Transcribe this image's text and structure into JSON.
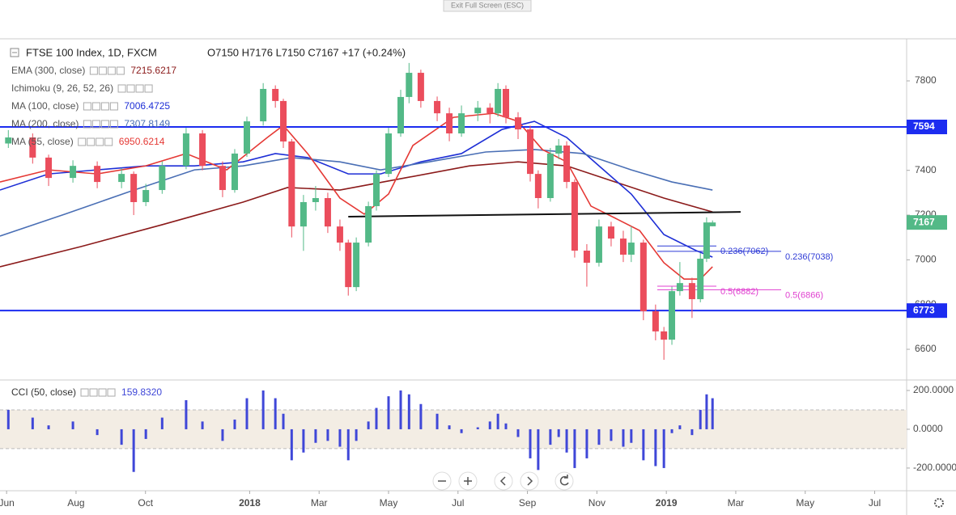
{
  "ui": {
    "exit_button": "Exit Full Screen (ESC)"
  },
  "chart_data": [
    {
      "type": "candlestick",
      "title": "FTSE 100 Index, 1D, FXCM",
      "ohlc_summary": "O7150 H7176 L7150 C7167 +17 (+0.24%)",
      "x": [
        0.05,
        0.75,
        1.21,
        1.91,
        2.61,
        3.31,
        3.66,
        4.01,
        4.48,
        5.17,
        5.64,
        6.22,
        6.57,
        6.92,
        7.39,
        7.74,
        7.97,
        8.21,
        8.55,
        8.9,
        9.25,
        9.6,
        9.84,
        10.07,
        10.42,
        10.65,
        11.0,
        11.35,
        11.59,
        11.93,
        12.4,
        12.75,
        13.1,
        13.57,
        13.92,
        14.15,
        14.38,
        14.73,
        15.08,
        15.31,
        15.66,
        15.9,
        16.13,
        16.36,
        16.71,
        17.06,
        17.41,
        17.76,
        17.99,
        18.34,
        18.69,
        18.93,
        19.16,
        19.39,
        19.74,
        19.98,
        20.16,
        20.33
      ],
      "open": [
        7520,
        7547,
        7457,
        7366,
        7420,
        7348,
        7384,
        7258,
        7312,
        7420,
        7565,
        7420,
        7312,
        7475,
        7619,
        7764,
        7710,
        7529,
        7149,
        7258,
        7276,
        7149,
        7077,
        6878,
        7077,
        7240,
        7384,
        7565,
        7728,
        7836,
        7710,
        7655,
        7565,
        7655,
        7680,
        7655,
        7764,
        7637,
        7583,
        7384,
        7276,
        7475,
        7511,
        7348,
        7041,
        6987,
        7149,
        7095,
        7023,
        7077,
        6770,
        6680,
        6643,
        6860,
        6896,
        6824,
        7005,
        7150
      ],
      "high": [
        7580,
        7565,
        7470,
        7445,
        7440,
        7410,
        7395,
        7340,
        7440,
        7590,
        7580,
        7440,
        7495,
        7640,
        7790,
        7780,
        7720,
        7540,
        7290,
        7330,
        7300,
        7180,
        7090,
        7100,
        7260,
        7400,
        7590,
        7760,
        7880,
        7850,
        7730,
        7680,
        7690,
        7710,
        7700,
        7790,
        7780,
        7660,
        7600,
        7400,
        7500,
        7540,
        7530,
        7360,
        7070,
        7180,
        7170,
        7130,
        7150,
        7090,
        6800,
        6700,
        6880,
        6990,
        6920,
        7030,
        7190,
        7176
      ],
      "low": [
        7500,
        7430,
        7330,
        7345,
        7320,
        7320,
        7200,
        7240,
        7295,
        7405,
        7400,
        7280,
        7300,
        7460,
        7600,
        7680,
        7500,
        7100,
        7040,
        7220,
        7120,
        7040,
        6840,
        6860,
        7060,
        7220,
        7370,
        7550,
        7700,
        7680,
        7620,
        7530,
        7550,
        7620,
        7610,
        7640,
        7610,
        7540,
        7350,
        7230,
        7260,
        7450,
        7320,
        7010,
        6880,
        6970,
        7060,
        6990,
        6990,
        6730,
        6640,
        6553,
        6620,
        6840,
        6740,
        6810,
        6990,
        7150
      ],
      "close": [
        7547,
        7457,
        7366,
        7420,
        7348,
        7384,
        7258,
        7312,
        7420,
        7565,
        7420,
        7312,
        7475,
        7619,
        7764,
        7710,
        7529,
        7149,
        7258,
        7276,
        7149,
        7077,
        6878,
        7077,
        7240,
        7384,
        7565,
        7728,
        7836,
        7710,
        7655,
        7565,
        7655,
        7680,
        7655,
        7764,
        7637,
        7583,
        7384,
        7276,
        7475,
        7511,
        7348,
        7041,
        6987,
        7149,
        7095,
        7023,
        7077,
        6770,
        6680,
        6643,
        6860,
        6896,
        6824,
        7005,
        7167,
        7167
      ],
      "up_color": "#53b987",
      "down_color": "#eb4d5c",
      "xlim": [
        -0.19,
        25.92
      ],
      "xticks": [
        {
          "value": 0,
          "label": "Jun"
        },
        {
          "value": 2,
          "label": "Aug"
        },
        {
          "value": 4,
          "label": "Oct"
        },
        {
          "value": 7,
          "label": "2018"
        },
        {
          "value": 9,
          "label": "Mar"
        },
        {
          "value": 11,
          "label": "May"
        },
        {
          "value": 13,
          "label": "Jul"
        },
        {
          "value": 15,
          "label": "Sep"
        },
        {
          "value": 17,
          "label": "Nov"
        },
        {
          "value": 19,
          "label": "2019"
        },
        {
          "value": 21,
          "label": "Mar"
        },
        {
          "value": 23,
          "label": "May"
        },
        {
          "value": 25,
          "label": "Jul"
        }
      ],
      "ylim": [
        6470,
        7988
      ],
      "yticks": [
        6600,
        6800,
        7000,
        7200,
        7400,
        7600,
        7800
      ],
      "indicators": [
        {
          "name": "EMA (300, close)",
          "value_label": "7215.6217",
          "color": "#8b1a1a",
          "x": [
            -0.19,
            2.14,
            4.48,
            6.81,
            8.09,
            9.6,
            11.47,
            13.33,
            14.73,
            16.13,
            17.53,
            18.93,
            20.33
          ],
          "values": [
            6969,
            7059,
            7157,
            7258,
            7323,
            7312,
            7366,
            7420,
            7438,
            7420,
            7348,
            7276,
            7214
          ]
        },
        {
          "name": "Ichimoku (9, 26, 52, 26)",
          "color": "#9aa0a6"
        },
        {
          "name": "MA (100, close)",
          "value_label": "7006.4725",
          "color": "#1e2fd6",
          "x": [
            -0.19,
            1.21,
            2.61,
            4.01,
            5.41,
            6.81,
            7.74,
            8.67,
            9.84,
            10.77,
            11.93,
            13.1,
            14.27,
            15.2,
            16.13,
            17.06,
            17.99,
            18.93,
            19.86,
            20.33
          ],
          "values": [
            7312,
            7384,
            7402,
            7420,
            7420,
            7438,
            7475,
            7457,
            7384,
            7384,
            7438,
            7475,
            7583,
            7619,
            7547,
            7420,
            7294,
            7113,
            7041,
            7012
          ]
        },
        {
          "name": "MA (200, close)",
          "value_label": "7307.8149",
          "color": "#4a6fb5",
          "x": [
            -0.19,
            1.68,
            3.54,
            5.41,
            6.81,
            8.21,
            9.6,
            10.77,
            12.17,
            13.8,
            15.2,
            16.6,
            17.99,
            19.16,
            20.33
          ],
          "values": [
            7106,
            7204,
            7305,
            7402,
            7420,
            7457,
            7438,
            7402,
            7438,
            7482,
            7493,
            7475,
            7402,
            7348,
            7312
          ]
        },
        {
          "name": "MA (55, close)",
          "value_label": "6950.6214",
          "color": "#e53935",
          "x": [
            -0.19,
            1.21,
            2.61,
            4.01,
            5.17,
            6.34,
            7.51,
            7.97,
            8.67,
            9.6,
            10.3,
            11.0,
            11.7,
            12.87,
            14.03,
            14.73,
            15.43,
            16.13,
            16.83,
            17.53,
            18.23,
            18.93,
            19.51,
            19.98,
            20.33
          ],
          "values": [
            7348,
            7402,
            7384,
            7420,
            7475,
            7402,
            7547,
            7601,
            7475,
            7276,
            7204,
            7294,
            7511,
            7637,
            7655,
            7619,
            7493,
            7438,
            7240,
            7186,
            7131,
            6987,
            6914,
            6914,
            6969
          ]
        }
      ],
      "levels": [
        {
          "value": 7594,
          "color": "#1c2cf0"
        },
        {
          "value": 6773,
          "color": "#1c2cf0"
        }
      ],
      "trendline": {
        "x": [
          9.84,
          21.14
        ],
        "values": [
          7193,
          7214
        ],
        "color": "#111111"
      },
      "fib": [
        {
          "label": "0.236(7062)",
          "value": 7062,
          "color": "#2f3bd6"
        },
        {
          "label": "0.236(7038)",
          "value": 7038,
          "color": "#2f3bd6"
        },
        {
          "label": "0.5(6882)",
          "value": 6882,
          "color": "#e040d0"
        },
        {
          "label": "0.5(6866)",
          "value": 6866,
          "color": "#e040d0"
        }
      ],
      "last_price": 7167,
      "last_color": "#53b987"
    },
    {
      "type": "bar",
      "title": "CCI (50, close)",
      "value_label": "159.8320",
      "x": [
        0.05,
        0.75,
        1.21,
        1.91,
        2.61,
        3.31,
        3.66,
        4.01,
        4.48,
        5.17,
        5.64,
        6.22,
        6.57,
        6.92,
        7.39,
        7.74,
        7.97,
        8.21,
        8.55,
        8.9,
        9.25,
        9.6,
        9.84,
        10.07,
        10.42,
        10.65,
        11.0,
        11.35,
        11.59,
        11.93,
        12.4,
        12.75,
        13.1,
        13.57,
        13.92,
        14.15,
        14.38,
        14.73,
        15.08,
        15.31,
        15.66,
        15.9,
        16.13,
        16.36,
        16.71,
        17.06,
        17.41,
        17.76,
        17.99,
        18.34,
        18.69,
        18.93,
        19.16,
        19.39,
        19.74,
        19.98,
        20.16,
        20.33
      ],
      "values": [
        100,
        60,
        20,
        40,
        -30,
        -80,
        -220,
        -50,
        60,
        150,
        40,
        -60,
        50,
        160,
        200,
        160,
        80,
        -160,
        -120,
        -70,
        -60,
        -90,
        -160,
        -60,
        40,
        110,
        170,
        200,
        180,
        130,
        80,
        20,
        -20,
        10,
        40,
        80,
        30,
        -40,
        -150,
        -210,
        -80,
        -40,
        -120,
        -200,
        -150,
        -80,
        -60,
        -90,
        -70,
        -160,
        -190,
        -200,
        -20,
        20,
        -30,
        100,
        180,
        160
      ],
      "color": "#3f47d8",
      "ylim": [
        -317,
        254
      ],
      "yticks": [
        {
          "value": -200,
          "label": "-200.0000"
        },
        {
          "value": 0,
          "label": "0.0000"
        },
        {
          "value": 200,
          "label": "200.0000"
        }
      ],
      "band": [
        -100,
        100
      ],
      "band_color": "#f3ede4"
    }
  ]
}
